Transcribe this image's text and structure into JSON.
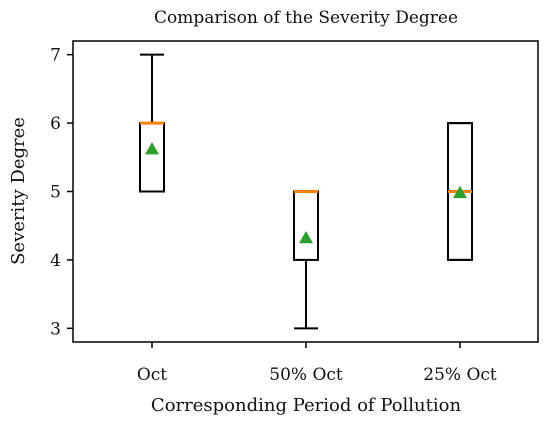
{
  "chart_data": {
    "type": "box",
    "title": "Comparison of the Severity Degree",
    "xlabel": "Corresponding Period of Pollution",
    "ylabel": "Severity Degree",
    "categories": [
      "Oct",
      "50% Oct",
      "25% Oct"
    ],
    "yticks": [
      "3",
      "4",
      "5",
      "6",
      "7"
    ],
    "ylim": [
      2.8,
      7.2
    ],
    "grid": false,
    "legend": "none",
    "boxes": [
      {
        "category": "Oct",
        "whisker_low": 5,
        "q1": 5,
        "median": 6,
        "q3": 6,
        "whisker_high": 7,
        "mean": 5.62
      },
      {
        "category": "50% Oct",
        "whisker_low": 3,
        "q1": 4,
        "median": 5,
        "q3": 5,
        "whisker_high": 5,
        "mean": 4.32
      },
      {
        "category": "25% Oct",
        "whisker_low": 4,
        "q1": 4,
        "median": 5,
        "q3": 6,
        "whisker_high": 6,
        "mean": 4.98
      }
    ],
    "colors": {
      "box": "#000000",
      "median": "#ff7f0e",
      "mean": "#2ca02c"
    }
  }
}
